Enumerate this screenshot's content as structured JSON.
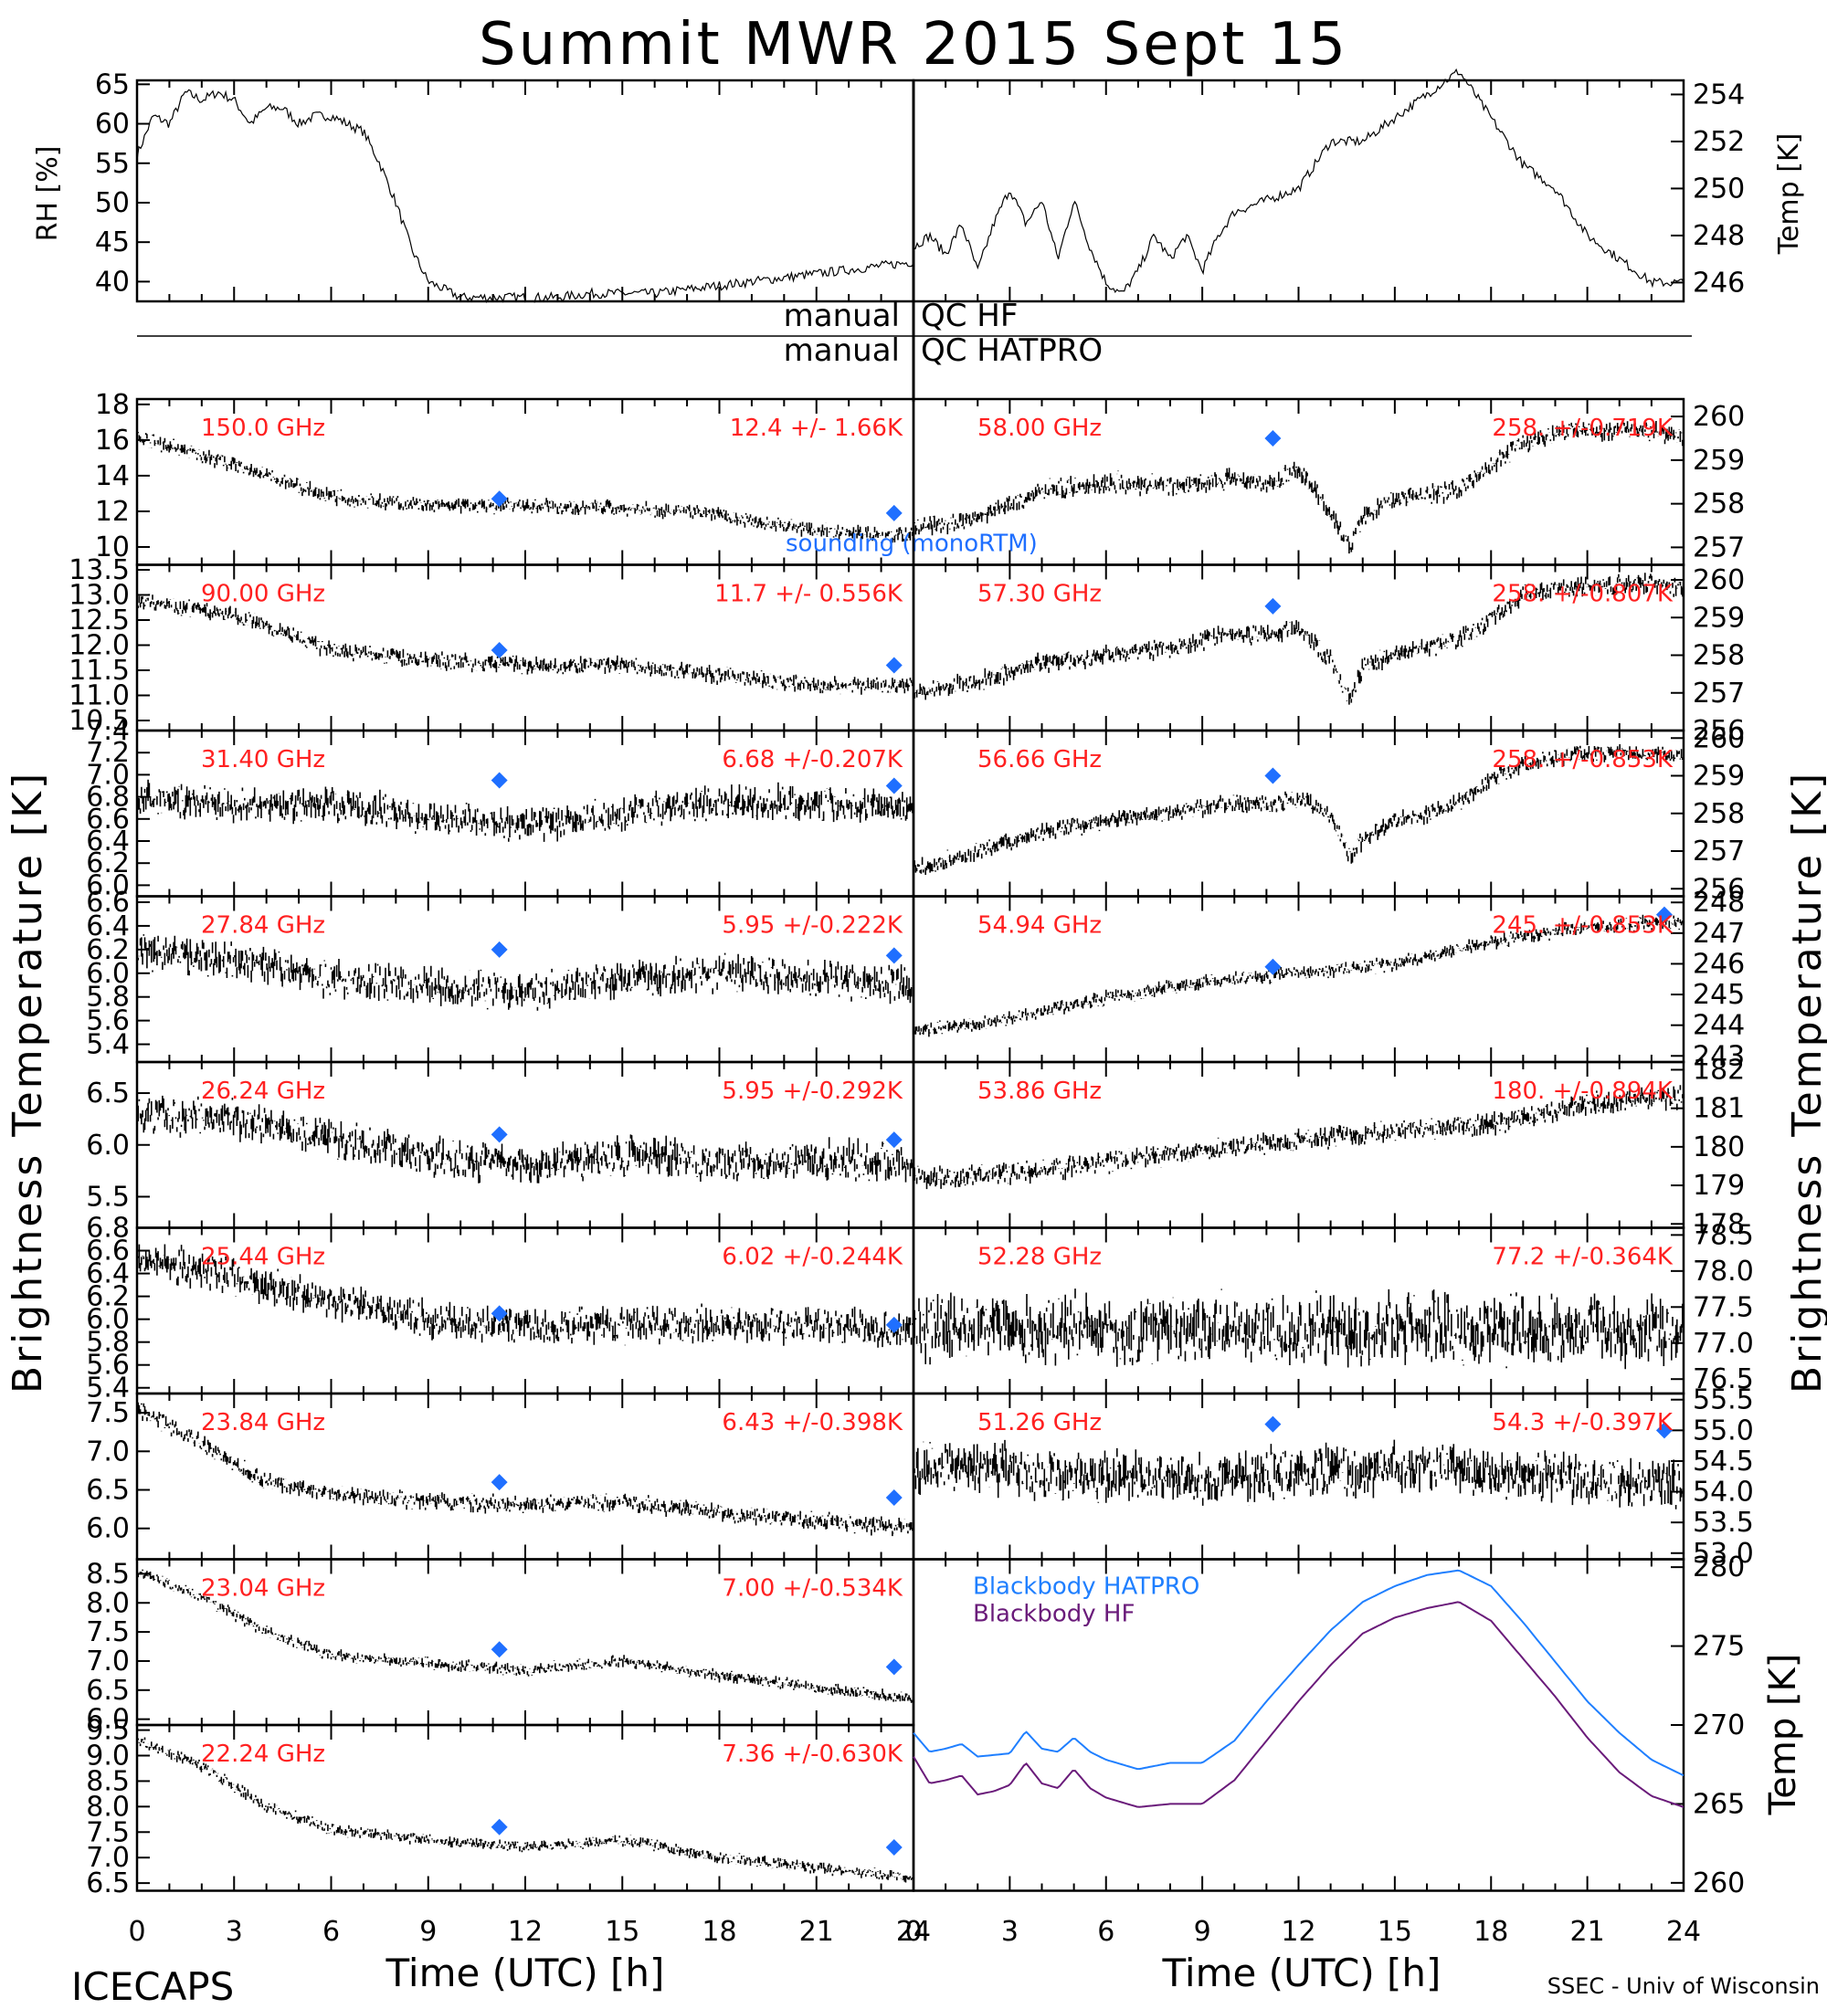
{
  "title": "Summit MWR 2015 Sept 15",
  "footer": {
    "left": "ICECAPS",
    "right": "SSEC - Univ of Wisconsin",
    "xlabel": "Time (UTC) [h]"
  },
  "qc": {
    "label1": "manual",
    "val1": "QC HF",
    "label2": "manual",
    "val2": "QC HATPRO"
  },
  "side_labels": {
    "left": "Brightness Temperature [K]",
    "right": "Brightness Temperature [K]"
  },
  "colors": {
    "text_red": "#ff2020",
    "marker": "#1f6fff",
    "bb_hatpro": "#1f7fff",
    "bb_hf": "#6a1b7a",
    "trace": "#000000"
  },
  "chart_data": [
    {
      "type": "line",
      "panel": "rh",
      "ylabel": "RH [%]",
      "xlim": [
        0,
        24
      ],
      "ylim": [
        37.5,
        65.5
      ],
      "yticks": [
        40,
        45,
        50,
        55,
        60,
        65
      ],
      "x": [
        0,
        0.5,
        1,
        1.5,
        2,
        2.5,
        3,
        3.5,
        4,
        4.5,
        5,
        5.5,
        6,
        6.5,
        7,
        7.5,
        8,
        8.5,
        9,
        9.5,
        10,
        11,
        12,
        13,
        14,
        15,
        16,
        17,
        18,
        19,
        20,
        21,
        22,
        23,
        24
      ],
      "values": [
        56,
        61,
        60,
        64,
        63,
        64,
        63,
        60,
        62,
        62,
        60,
        61,
        61,
        60,
        59,
        55,
        50,
        44,
        40,
        39,
        38,
        38,
        38,
        38,
        38.5,
        38.5,
        38.5,
        39,
        39.5,
        40,
        40.5,
        41,
        41.5,
        42,
        42.5
      ]
    },
    {
      "type": "line",
      "panel": "temp",
      "ylabel": "Temp [K]",
      "xlim": [
        0,
        24
      ],
      "ylim": [
        245.2,
        254.6
      ],
      "yticks": [
        246,
        248,
        250,
        252,
        254
      ],
      "x": [
        0,
        0.5,
        1,
        1.5,
        2,
        2.5,
        3,
        3.5,
        4,
        4.5,
        5,
        5.5,
        6,
        6.5,
        7,
        7.5,
        8,
        8.5,
        9,
        9.5,
        10,
        11,
        12,
        13,
        14,
        15,
        16,
        17,
        18,
        19,
        20,
        21,
        22,
        23,
        24
      ],
      "values": [
        247.5,
        248,
        247.2,
        248.5,
        246.5,
        248.5,
        250,
        248.5,
        249.5,
        247,
        249.5,
        247.5,
        246,
        245.5,
        246.5,
        248,
        247,
        248,
        246.5,
        248,
        249,
        249.5,
        250,
        252,
        252,
        253,
        254,
        255,
        253,
        251,
        250,
        248,
        247,
        246,
        246
      ]
    },
    {
      "type": "line",
      "panel": "left",
      "label": "150.0 GHz",
      "stats": "12.4 +/-  1.66K",
      "ylim": [
        9,
        18.3
      ],
      "yticks": [
        10,
        12,
        14,
        16,
        18
      ],
      "ytick_labels": [
        "10",
        "12",
        "14",
        "16",
        "18"
      ],
      "x": [
        0,
        3,
        6,
        9,
        12,
        15,
        18,
        21,
        24
      ],
      "values": [
        16.2,
        14.6,
        12.8,
        12.3,
        12.3,
        12.2,
        11.8,
        10.9,
        10.6
      ],
      "noise": 0.45,
      "markers": [
        [
          11.2,
          12.7
        ],
        [
          23.4,
          11.9
        ]
      ],
      "extra": "sounding (monoRTM)"
    },
    {
      "type": "line",
      "panel": "left",
      "label": "90.00 GHz",
      "stats": "11.7 +/- 0.556K",
      "ylim": [
        10.3,
        13.6
      ],
      "yticks": [
        10.5,
        11.0,
        11.5,
        12.0,
        12.5,
        13.0,
        13.5
      ],
      "ytick_labels": [
        "10.5",
        "11.0",
        "11.5",
        "12.0",
        "12.5",
        "13.0",
        "13.5"
      ],
      "x": [
        0,
        3,
        6,
        9,
        12,
        15,
        18,
        21,
        24
      ],
      "values": [
        12.9,
        12.6,
        11.9,
        11.7,
        11.6,
        11.6,
        11.4,
        11.2,
        11.2
      ],
      "noise": 0.18,
      "markers": [
        [
          11.2,
          11.9
        ],
        [
          23.4,
          11.6
        ]
      ]
    },
    {
      "type": "line",
      "panel": "left",
      "label": "31.40 GHz",
      "stats": "6.68 +/-0.207K",
      "ylim": [
        5.9,
        7.4
      ],
      "yticks": [
        6.0,
        6.2,
        6.4,
        6.6,
        6.8,
        7.0,
        7.2,
        7.4
      ],
      "ytick_labels": [
        "6.0",
        "6.2",
        "6.4",
        "6.6",
        "6.8",
        "7.0",
        "7.2",
        "7.4"
      ],
      "x": [
        0,
        3,
        6,
        9,
        12,
        15,
        18,
        21,
        24
      ],
      "values": [
        6.8,
        6.7,
        6.75,
        6.6,
        6.55,
        6.65,
        6.75,
        6.75,
        6.7
      ],
      "noise": 0.17,
      "markers": [
        [
          11.2,
          6.95
        ],
        [
          23.4,
          6.9
        ]
      ]
    },
    {
      "type": "line",
      "panel": "left",
      "label": "27.84 GHz",
      "stats": "5.95 +/-0.222K",
      "ylim": [
        5.25,
        6.65
      ],
      "yticks": [
        5.4,
        5.6,
        5.8,
        6.0,
        6.2,
        6.4,
        6.6
      ],
      "ytick_labels": [
        "5.4",
        "5.6",
        "5.8",
        "6.0",
        "6.2",
        "6.4",
        "6.6"
      ],
      "x": [
        0,
        3,
        6,
        9,
        12,
        15,
        18,
        21,
        24
      ],
      "values": [
        6.2,
        6.1,
        5.95,
        5.9,
        5.85,
        5.95,
        6.0,
        5.95,
        5.9
      ],
      "noise": 0.16,
      "markers": [
        [
          11.2,
          6.2
        ],
        [
          23.4,
          6.15
        ]
      ]
    },
    {
      "type": "line",
      "panel": "left",
      "label": "26.24 GHz",
      "stats": "5.95 +/-0.292K",
      "ylim": [
        5.2,
        6.8
      ],
      "yticks": [
        5.5,
        6.0,
        6.5
      ],
      "ytick_labels": [
        "5.5",
        "6.0",
        "6.5"
      ],
      "x": [
        0,
        3,
        6,
        9,
        12,
        15,
        18,
        21,
        24
      ],
      "values": [
        6.3,
        6.25,
        6.05,
        5.9,
        5.8,
        5.9,
        5.85,
        5.85,
        5.85
      ],
      "noise": 0.2,
      "markers": [
        [
          11.2,
          6.1
        ],
        [
          23.4,
          6.05
        ]
      ]
    },
    {
      "type": "line",
      "panel": "left",
      "label": "25.44 GHz",
      "stats": "6.02 +/-0.244K",
      "ylim": [
        5.35,
        6.8
      ],
      "yticks": [
        5.4,
        5.6,
        5.8,
        6.0,
        6.2,
        6.4,
        6.6,
        6.8
      ],
      "ytick_labels": [
        "5.4",
        "5.6",
        "5.8",
        "6.0",
        "6.2",
        "6.4",
        "6.6",
        "6.8"
      ],
      "x": [
        0,
        3,
        6,
        9,
        12,
        15,
        18,
        21,
        24
      ],
      "values": [
        6.55,
        6.35,
        6.15,
        6.0,
        5.95,
        5.95,
        5.95,
        5.95,
        5.9
      ],
      "noise": 0.17,
      "markers": [
        [
          11.2,
          6.05
        ],
        [
          23.4,
          5.95
        ]
      ]
    },
    {
      "type": "line",
      "panel": "left",
      "label": "23.84 GHz",
      "stats": "6.43 +/-0.398K",
      "ylim": [
        5.6,
        7.75
      ],
      "yticks": [
        6.0,
        6.5,
        7.0,
        7.5
      ],
      "ytick_labels": [
        "6.0",
        "6.5",
        "7.0",
        "7.5"
      ],
      "x": [
        0,
        2,
        4,
        6,
        9,
        12,
        15,
        18,
        21,
        24
      ],
      "values": [
        7.55,
        7.1,
        6.6,
        6.45,
        6.35,
        6.3,
        6.35,
        6.2,
        6.1,
        6.0
      ],
      "noise": 0.12,
      "markers": [
        [
          11.2,
          6.6
        ],
        [
          23.4,
          6.4
        ]
      ]
    },
    {
      "type": "line",
      "panel": "left",
      "label": "23.04 GHz",
      "stats": "7.00 +/-0.534K",
      "ylim": [
        5.9,
        8.75
      ],
      "yticks": [
        6.0,
        6.5,
        7.0,
        7.5,
        8.0,
        8.5
      ],
      "ytick_labels": [
        "6.0",
        "6.5",
        "7.0",
        "7.5",
        "8.0",
        "8.5"
      ],
      "x": [
        0,
        2,
        4,
        6,
        9,
        12,
        15,
        18,
        21,
        24
      ],
      "values": [
        8.55,
        8.1,
        7.5,
        7.1,
        6.95,
        6.85,
        7.0,
        6.75,
        6.55,
        6.35
      ],
      "noise": 0.11,
      "markers": [
        [
          11.2,
          7.2
        ],
        [
          23.4,
          6.9
        ]
      ]
    },
    {
      "type": "line",
      "panel": "left",
      "label": "22.24 GHz",
      "stats": "7.36 +/-0.630K",
      "ylim": [
        6.35,
        9.6
      ],
      "yticks": [
        6.5,
        7.0,
        7.5,
        8.0,
        8.5,
        9.0,
        9.5
      ],
      "ytick_labels": [
        "6.5",
        "7.0",
        "7.5",
        "8.0",
        "8.5",
        "9.0",
        "9.5"
      ],
      "x": [
        0,
        2,
        4,
        6,
        9,
        12,
        15,
        18,
        21,
        24
      ],
      "values": [
        9.3,
        8.8,
        8.0,
        7.55,
        7.35,
        7.2,
        7.35,
        7.0,
        6.8,
        6.6
      ],
      "noise": 0.12,
      "markers": [
        [
          11.2,
          7.6
        ],
        [
          23.4,
          7.2
        ]
      ]
    },
    {
      "type": "line",
      "panel": "right",
      "label": "58.00 GHz",
      "stats": "258. +/-0.719K",
      "ylim": [
        256.6,
        260.4
      ],
      "yticks": [
        257,
        258,
        259,
        260
      ],
      "ytick_labels": [
        "257",
        "258",
        "259",
        "260"
      ],
      "x": [
        0,
        2,
        4,
        6,
        8,
        10,
        11,
        12,
        13,
        13.6,
        14,
        15,
        16,
        17,
        18,
        19,
        20,
        21,
        22,
        23,
        24
      ],
      "values": [
        257.4,
        257.7,
        258.3,
        258.5,
        258.4,
        258.6,
        258.4,
        258.8,
        257.8,
        257.0,
        257.7,
        258.1,
        258.2,
        258.3,
        258.9,
        259.4,
        259.6,
        259.7,
        259.7,
        259.7,
        259.5
      ],
      "noise": 0.25,
      "markers": [
        [
          11.2,
          259.5
        ]
      ]
    },
    {
      "type": "line",
      "panel": "right",
      "label": "57.30 GHz",
      "stats": "258. +/-0.807K",
      "ylim": [
        256,
        260.4
      ],
      "yticks": [
        256,
        257,
        258,
        259,
        260
      ],
      "ytick_labels": [
        "256",
        "257",
        "258",
        "259",
        "260"
      ],
      "x": [
        0,
        2,
        4,
        6,
        8,
        10,
        11,
        12,
        13,
        13.6,
        14,
        15,
        16,
        17,
        18,
        19,
        20,
        21,
        22,
        23,
        24
      ],
      "values": [
        257,
        257.3,
        257.8,
        258,
        258.2,
        258.6,
        258.5,
        258.7,
        257.9,
        256.8,
        257.7,
        258,
        258.2,
        258.4,
        259,
        259.6,
        259.8,
        259.8,
        259.9,
        259.9,
        259.8
      ],
      "noise": 0.28,
      "markers": [
        [
          11.2,
          259.3
        ]
      ]
    },
    {
      "type": "line",
      "panel": "right",
      "label": "56.66 GHz",
      "stats": "258. +/-0.853K",
      "ylim": [
        255.8,
        260.2
      ],
      "yticks": [
        256,
        257,
        258,
        259,
        260
      ],
      "ytick_labels": [
        "256",
        "257",
        "258",
        "259",
        "260"
      ],
      "x": [
        0,
        2,
        4,
        6,
        8,
        10,
        11,
        12,
        13,
        13.6,
        14,
        15,
        16,
        17,
        18,
        19,
        20,
        21,
        22,
        23,
        24
      ],
      "values": [
        256.5,
        257,
        257.5,
        257.8,
        258,
        258.3,
        258.2,
        258.4,
        258,
        256.8,
        257.3,
        257.8,
        258,
        258.3,
        258.9,
        259.3,
        259.5,
        259.6,
        259.6,
        259.6,
        259.5
      ],
      "noise": 0.25,
      "markers": [
        [
          11.2,
          259.0
        ]
      ]
    },
    {
      "type": "line",
      "panel": "right",
      "label": "54.94 GHz",
      "stats": "245. +/-0.853K",
      "ylim": [
        242.8,
        248.2
      ],
      "yticks": [
        243,
        244,
        245,
        246,
        247,
        248
      ],
      "ytick_labels": [
        "243",
        "244",
        "245",
        "246",
        "247",
        "248"
      ],
      "x": [
        0,
        3,
        6,
        9,
        12,
        15,
        18,
        21,
        24
      ],
      "values": [
        243.8,
        244.2,
        244.9,
        245.4,
        245.7,
        246.0,
        246.7,
        247.2,
        247.4
      ],
      "noise": 0.25,
      "markers": [
        [
          11.2,
          245.9
        ],
        [
          23.4,
          247.6
        ]
      ]
    },
    {
      "type": "line",
      "panel": "right",
      "label": "53.86 GHz",
      "stats": "180. +/-0.894K",
      "ylim": [
        177.9,
        182.2
      ],
      "yticks": [
        178,
        179,
        180,
        181,
        182
      ],
      "ytick_labels": [
        "178",
        "179",
        "180",
        "181",
        "182"
      ],
      "x": [
        0,
        3,
        6,
        9,
        12,
        15,
        18,
        21,
        24
      ],
      "values": [
        179.2,
        179.3,
        179.6,
        179.9,
        180.2,
        180.4,
        180.6,
        181.1,
        181.3
      ],
      "noise": 0.3,
      "markers": []
    },
    {
      "type": "line",
      "panel": "right",
      "label": "52.28 GHz",
      "stats": "77.2 +/-0.364K",
      "ylim": [
        76.3,
        78.6
      ],
      "yticks": [
        76.5,
        77.0,
        77.5,
        78.0,
        78.5
      ],
      "ytick_labels": [
        "76.5",
        "77.0",
        "77.5",
        "78.0",
        "78.5"
      ],
      "x": [
        0,
        3,
        6,
        9,
        12,
        15,
        18,
        21,
        24
      ],
      "values": [
        77.2,
        77.2,
        77.2,
        77.2,
        77.2,
        77.2,
        77.2,
        77.2,
        77.2
      ],
      "noise": 0.5,
      "markers": []
    },
    {
      "type": "line",
      "panel": "right",
      "label": "51.26 GHz",
      "stats": "54.3 +/-0.397K",
      "ylim": [
        52.9,
        55.6
      ],
      "yticks": [
        53.0,
        53.5,
        54.0,
        54.5,
        55.0,
        55.5
      ],
      "ytick_labels": [
        "53.0",
        "53.5",
        "54.0",
        "54.5",
        "55.0",
        "55.5"
      ],
      "x": [
        0,
        3,
        6,
        9,
        12,
        15,
        18,
        21,
        24
      ],
      "values": [
        54.4,
        54.35,
        54.25,
        54.2,
        54.3,
        54.4,
        54.35,
        54.2,
        54.1
      ],
      "noise": 0.45,
      "markers": [
        [
          11.2,
          55.1
        ],
        [
          23.4,
          55.0
        ]
      ]
    },
    {
      "type": "line",
      "panel": "bb",
      "ylabel": "Temp [K]",
      "ylim": [
        259.5,
        280.5
      ],
      "yticks": [
        260,
        265,
        270,
        275,
        280
      ],
      "ytick_labels": [
        "260",
        "265",
        "270",
        "275",
        "280"
      ],
      "legend": [
        "Blackbody HATPRO",
        "Blackbody HF"
      ],
      "x": [
        0,
        0.5,
        1,
        1.5,
        2,
        2.5,
        3,
        3.5,
        4,
        4.5,
        5,
        5.5,
        6,
        7,
        8,
        9,
        10,
        11,
        12,
        13,
        14,
        15,
        16,
        17,
        18,
        19,
        20,
        21,
        22,
        23,
        24
      ],
      "series": [
        {
          "name": "Blackbody HATPRO",
          "values": [
            269.5,
            268.3,
            268.5,
            268.8,
            268.0,
            268.1,
            268.2,
            269.6,
            268.5,
            268.3,
            269.2,
            268.3,
            267.8,
            267.2,
            267.6,
            267.6,
            269.0,
            271.5,
            273.8,
            276.0,
            277.8,
            278.8,
            279.5,
            279.8,
            278.8,
            276.5,
            274.0,
            271.5,
            269.5,
            267.8,
            266.8
          ]
        },
        {
          "name": "Blackbody HF",
          "values": [
            268.0,
            266.3,
            266.5,
            266.8,
            265.6,
            265.8,
            266.2,
            267.6,
            266.3,
            266.0,
            267.2,
            266.0,
            265.4,
            264.8,
            265.0,
            265.0,
            266.5,
            269.0,
            271.5,
            273.8,
            275.8,
            276.8,
            277.4,
            277.8,
            276.6,
            274.2,
            271.8,
            269.2,
            267.0,
            265.5,
            264.8
          ]
        }
      ]
    }
  ]
}
